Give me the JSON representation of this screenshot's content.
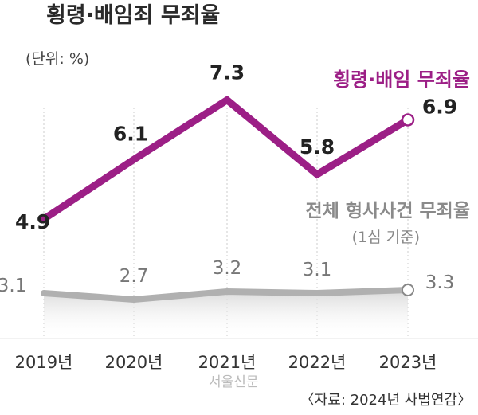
{
  "header": {
    "title": "횡령·배임죄 무죄율",
    "unit": "(단위: %)"
  },
  "source": "〈자료: 2024년 사법연감〉",
  "watermark": "서울신문",
  "colors": {
    "series_main": "#9c1f86",
    "series_sub": "#b0b0b0",
    "text": "#222222",
    "sub_text": "#777777",
    "gridline": "#cccccc"
  },
  "chart_data": {
    "type": "line",
    "title": "횡령·배임죄 무죄율",
    "categories": [
      "2019년",
      "2020년",
      "2021년",
      "2022년",
      "2023년"
    ],
    "series": [
      {
        "name": "횡령·배임 무죄율",
        "values": [
          4.9,
          6.1,
          7.3,
          5.8,
          6.9
        ]
      },
      {
        "name": "전체 형사사건 무죄율",
        "note": "(1심 기준)",
        "values": [
          3.1,
          2.7,
          3.2,
          3.1,
          3.3
        ]
      }
    ],
    "grid": "vertical dotted",
    "legend": "inline"
  }
}
